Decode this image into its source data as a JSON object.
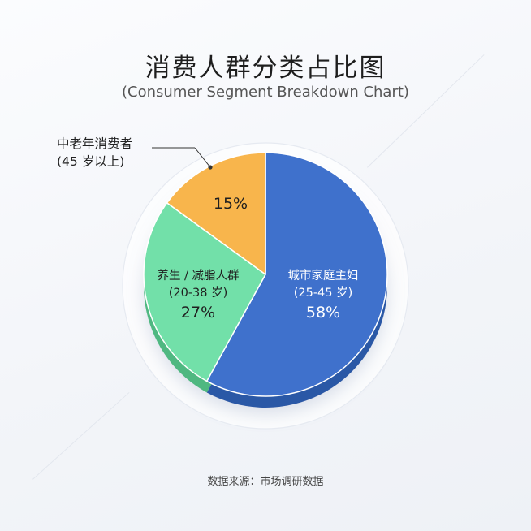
{
  "chart_data": {
    "type": "pie",
    "title": "消费人群分类占比图",
    "subtitle": "(Consumer Segment Breakdown Chart)",
    "slices": [
      {
        "label": "城市家庭主妇",
        "sublabel": "(25-45 岁)",
        "value": 58,
        "value_label": "58%",
        "color": "#3f71cc",
        "side_color": "#2c58a6"
      },
      {
        "label": "养生 / 减脂人群",
        "sublabel": "(20-38 岁)",
        "value": 27,
        "value_label": "27%",
        "color": "#72e0a9",
        "side_color": "#4fb881"
      },
      {
        "label": "中老年消费者",
        "sublabel": "(45 岁以上)",
        "value": 15,
        "value_label": "15%",
        "color": "#f8b54c",
        "side_color": "#d8952c"
      }
    ],
    "start": "12 o'clock",
    "direction": "clockwise",
    "source": "数据来源：市场调研数据"
  }
}
